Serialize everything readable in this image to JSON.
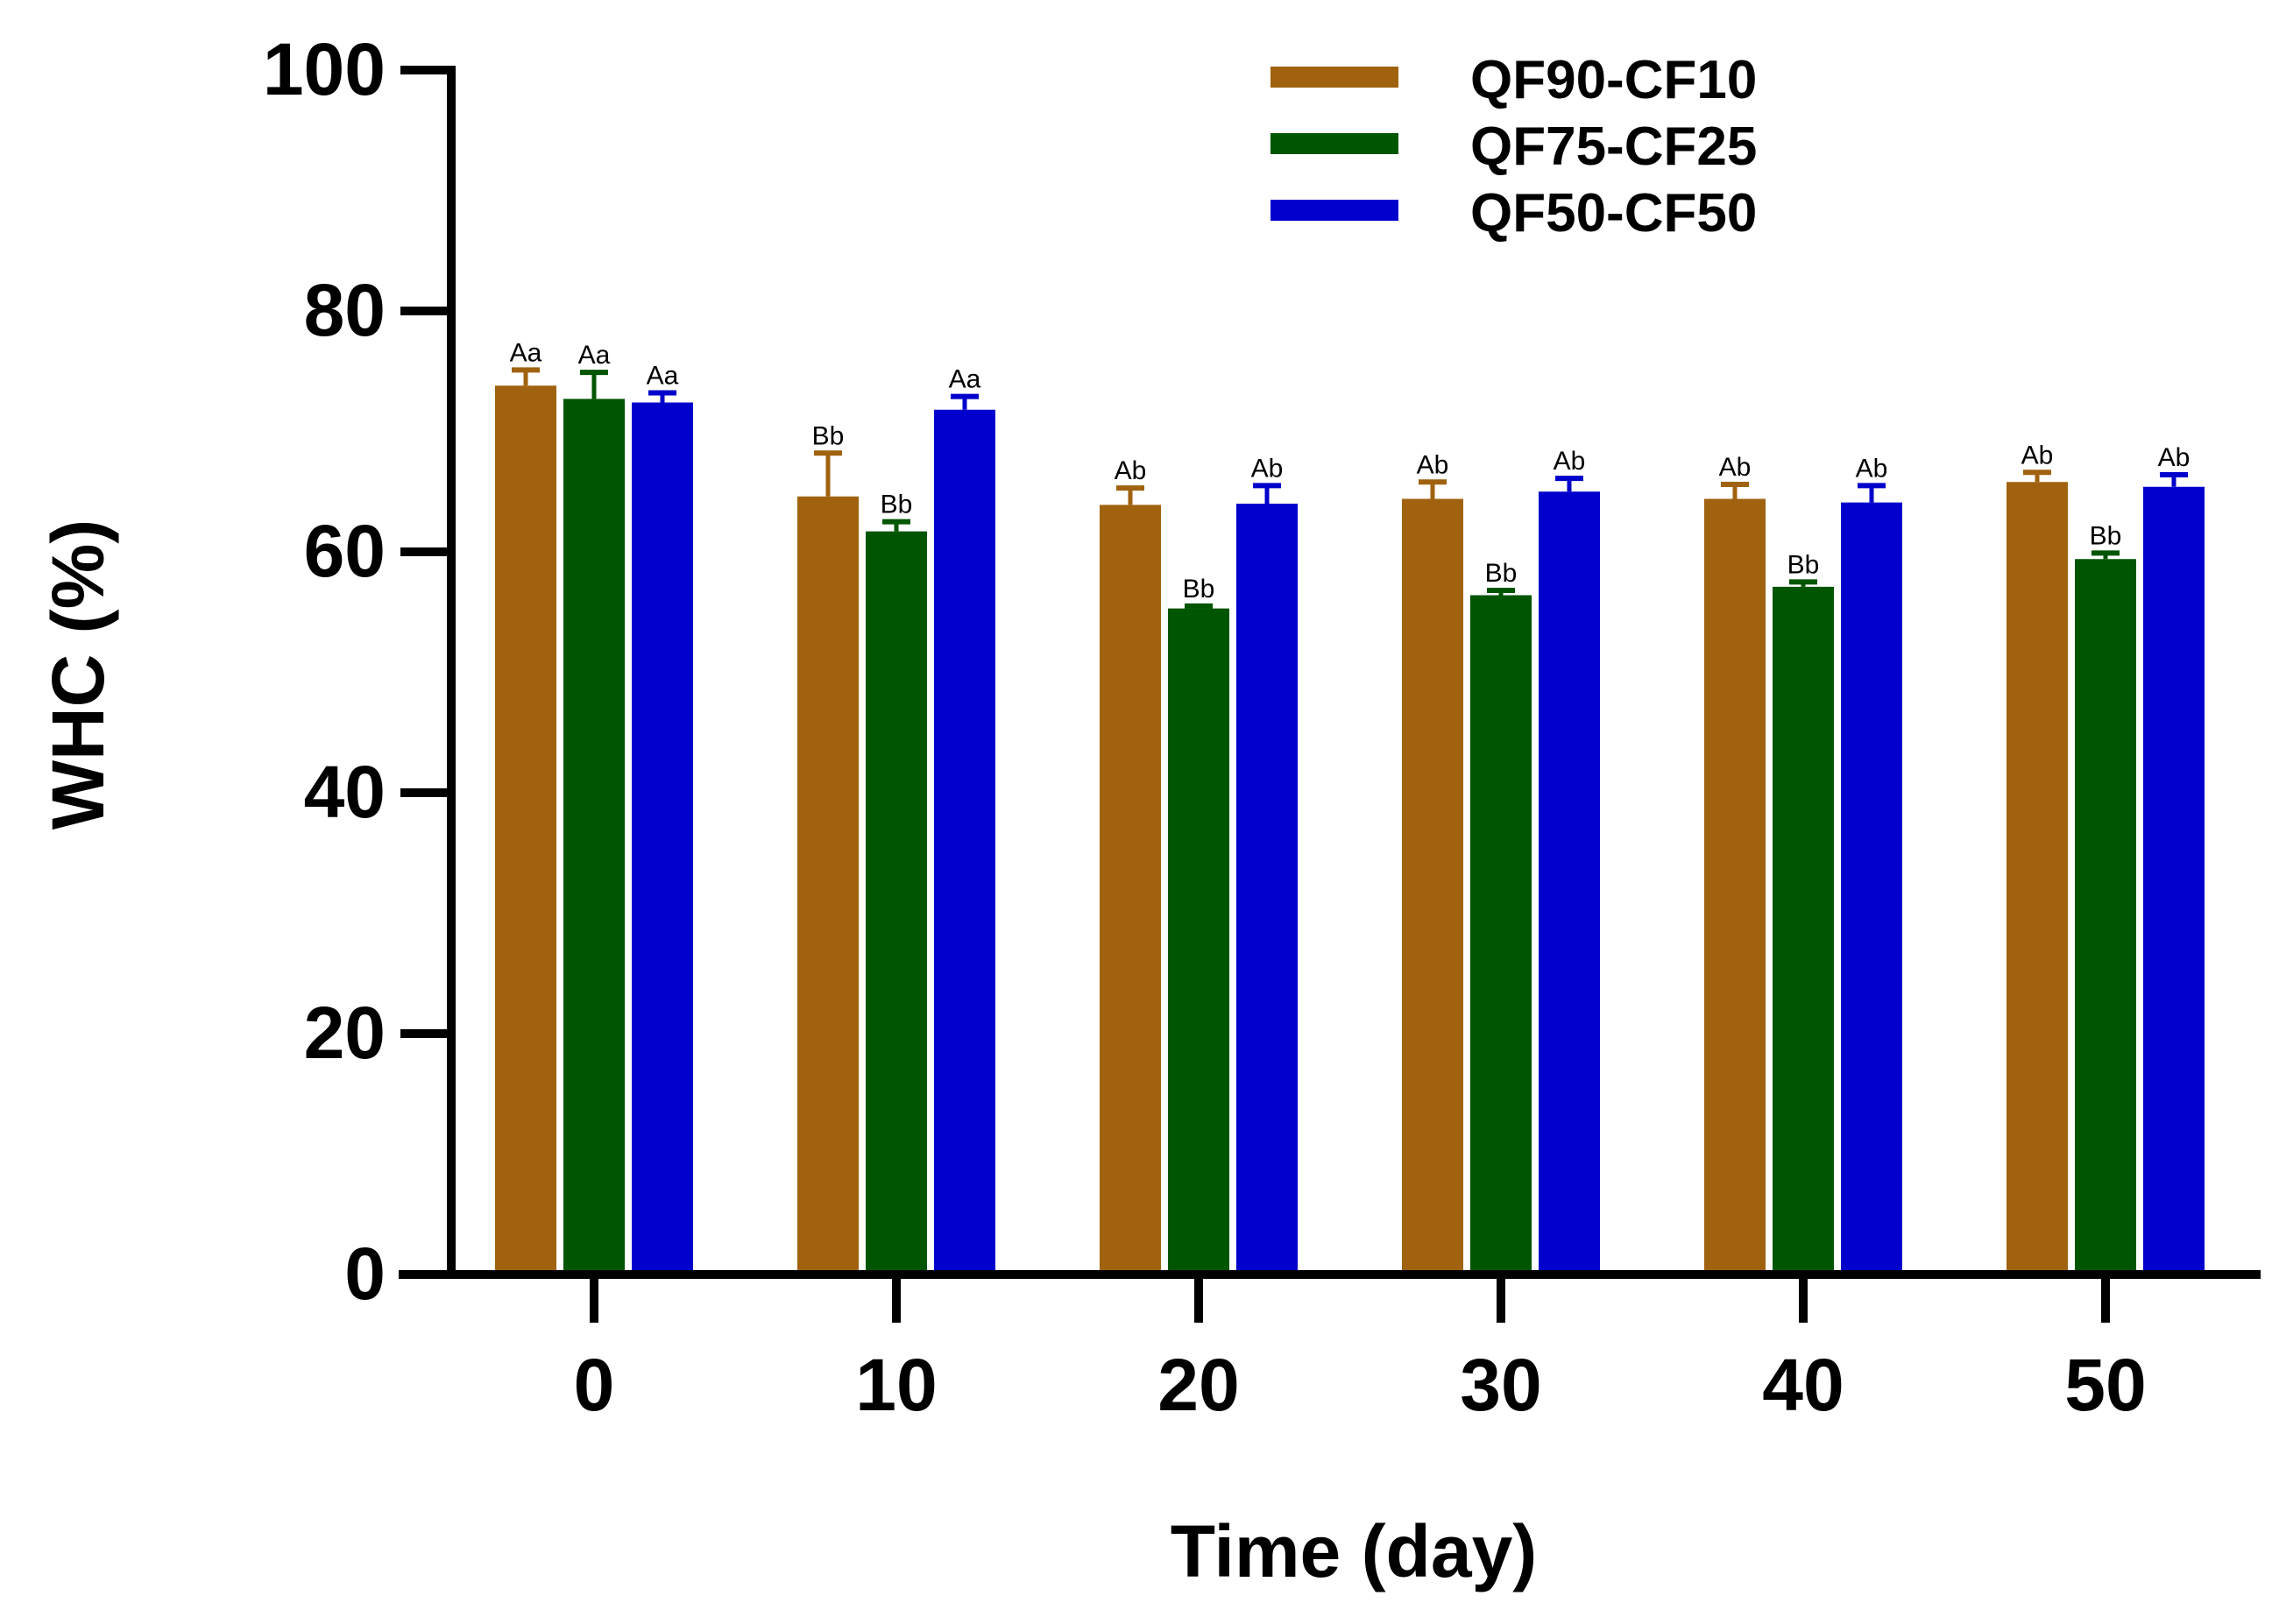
{
  "chart_data": {
    "type": "bar",
    "title": "",
    "xlabel": "Time (day)",
    "ylabel": "WHC (%)",
    "ylim": [
      0,
      100
    ],
    "yticks": [
      "0",
      "20",
      "40",
      "60",
      "80",
      "100"
    ],
    "categories": [
      "0",
      "10",
      "20",
      "30",
      "40",
      "50"
    ],
    "legend_position": "top-right",
    "grid": false,
    "series": [
      {
        "name": "QF90-CF10",
        "color": "#A0620F",
        "values": [
          73.8,
          64.6,
          63.9,
          64.4,
          64.4,
          65.8
        ],
        "errors": [
          1.3,
          3.6,
          1.4,
          1.4,
          1.2,
          0.8
        ],
        "labels": [
          "Aa",
          "Bb",
          "Ab",
          "Ab",
          "Ab",
          "Ab"
        ]
      },
      {
        "name": "QF75-CF25",
        "color": "#005500",
        "values": [
          72.7,
          61.7,
          55.3,
          56.4,
          57.1,
          59.4
        ],
        "errors": [
          2.2,
          0.8,
          0.2,
          0.4,
          0.4,
          0.5
        ],
        "labels": [
          "Aa",
          "Bb",
          "Bb",
          "Bb",
          "Bb",
          "Bb"
        ]
      },
      {
        "name": "QF50-CF50",
        "color": "#0000CC",
        "values": [
          72.4,
          71.8,
          64.0,
          65.0,
          64.1,
          65.4
        ],
        "errors": [
          0.8,
          1.1,
          1.5,
          1.1,
          1.4,
          1.0
        ],
        "labels": [
          "Aa",
          "Aa",
          "Ab",
          "Ab",
          "Ab",
          "Ab"
        ]
      }
    ]
  }
}
